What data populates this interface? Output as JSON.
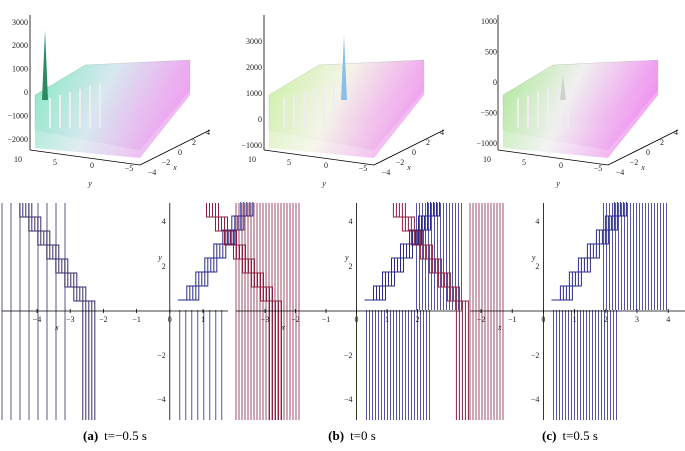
{
  "panels": [
    {
      "caption_label": "(a)",
      "caption_text": "t=−0.5 s",
      "surface": {
        "z_ticks": [
          "3000",
          "2000",
          "1000",
          "0",
          "−1000",
          "−2000"
        ],
        "y_ticks": [
          "10",
          "5",
          "0",
          "−5"
        ],
        "x_ticks": [
          "−4",
          "−2",
          "0",
          "2",
          "4"
        ],
        "y_label": "y",
        "x_label": "x"
      },
      "contour": {
        "x_ticks": [
          "−4",
          "−3",
          "−2",
          "−1",
          "0",
          "1"
        ],
        "y_ticks": [
          "4",
          "2",
          "−2",
          "−4"
        ],
        "x_label": "x",
        "y_label": "y"
      }
    },
    {
      "caption_label": "(b)",
      "caption_text": "t=0 s",
      "surface": {
        "z_ticks": [
          "3000",
          "2000",
          "1000",
          "0",
          "−1000"
        ],
        "y_ticks": [
          "10",
          "5",
          "0",
          "−5"
        ],
        "x_ticks": [
          "−4",
          "−2",
          "0",
          "2",
          "4"
        ],
        "y_label": "y",
        "x_label": "x"
      },
      "contour": {
        "x_ticks": [
          "−3",
          "−2",
          "−1",
          "0",
          "1",
          "2"
        ],
        "y_ticks": [
          "4",
          "2",
          "−2",
          "−4"
        ],
        "x_label": "x",
        "y_label": "y"
      }
    },
    {
      "caption_label": "(c)",
      "caption_text": "t=0.5 s",
      "surface": {
        "z_ticks": [
          "1000",
          "500",
          "0",
          "−500",
          "−1000"
        ],
        "y_ticks": [
          "10",
          "5",
          "0",
          "−5"
        ],
        "x_ticks": [
          "−4",
          "−2",
          "0",
          "2",
          "4"
        ],
        "y_label": "y",
        "x_label": "x"
      },
      "contour": {
        "x_ticks": [
          "−2",
          "−1",
          "0",
          "1",
          "2",
          "3",
          "4"
        ],
        "y_ticks": [
          "4",
          "2",
          "−2",
          "−4"
        ],
        "x_label": "x",
        "y_label": "y"
      }
    }
  ]
}
